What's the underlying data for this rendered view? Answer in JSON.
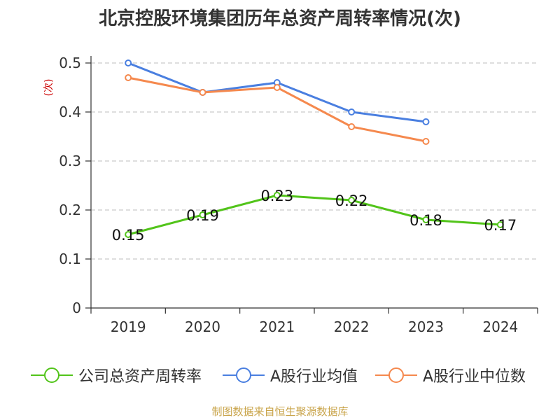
{
  "title": "北京控股环境集团历年总资产周转率情况(次)",
  "source": "制图数据来自恒生聚源数据库",
  "chart_data": {
    "type": "line",
    "title": "北京控股环境集团历年总资产周转率情况(次)",
    "ylabel": "(次)",
    "xlabel": "",
    "categories": [
      "2019",
      "2020",
      "2021",
      "2022",
      "2023",
      "2024"
    ],
    "ylim": [
      0,
      0.5
    ],
    "yticks": [
      0,
      0.1,
      0.2,
      0.3,
      0.4,
      0.5
    ],
    "ytick_labels": [
      "0",
      "0.1",
      "0.2",
      "0.3",
      "0.4",
      "0.5"
    ],
    "grid": true,
    "legend_position": "bottom",
    "series": [
      {
        "name": "公司总资产周转率",
        "color": "#52c41a",
        "values": [
          0.15,
          0.19,
          0.23,
          0.22,
          0.18,
          0.17
        ],
        "labels": [
          "0.15",
          "0.19",
          "0.23",
          "0.22",
          "0.18",
          "0.17"
        ]
      },
      {
        "name": "A股行业均值",
        "color": "#4a7fe0",
        "values": [
          0.5,
          0.44,
          0.46,
          0.4,
          0.38,
          null
        ]
      },
      {
        "name": "A股行业中位数",
        "color": "#f5894e",
        "values": [
          0.47,
          0.44,
          0.45,
          0.37,
          0.34,
          null
        ]
      }
    ]
  },
  "colors": {
    "axis": "#333333",
    "grid": "#cccccc",
    "ylabel": "#cc0000",
    "source": "#c9a44a"
  }
}
